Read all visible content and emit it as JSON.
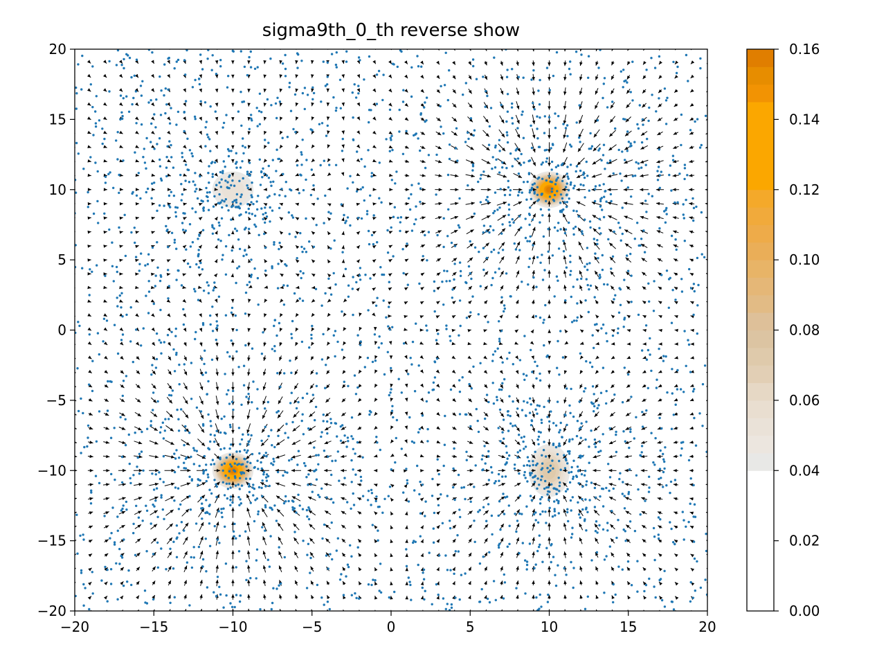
{
  "chart_data": {
    "type": "quiver_contour_scatter",
    "title": "sigma9th_0_th reverse show",
    "xlabel": "",
    "ylabel": "",
    "xlim": [
      -20,
      20
    ],
    "ylim": [
      -20,
      20
    ],
    "grid": false,
    "x_ticks": [
      -20,
      -15,
      -10,
      -5,
      0,
      5,
      10,
      15,
      20
    ],
    "y_ticks": [
      -20,
      -15,
      -10,
      -5,
      0,
      5,
      10,
      15,
      20
    ],
    "x_tick_labels": [
      "−20",
      "−15",
      "−10",
      "−5",
      "0",
      "5",
      "10",
      "15",
      "20"
    ],
    "y_tick_labels": [
      "−20",
      "−15",
      "−10",
      "−5",
      "0",
      "5",
      "10",
      "15",
      "20"
    ],
    "density_peaks": [
      {
        "x": -10,
        "y": 10,
        "peak": 0.055
      },
      {
        "x": 10,
        "y": 10,
        "peak": 0.16
      },
      {
        "x": -10,
        "y": -10,
        "peak": 0.16
      },
      {
        "x": 10,
        "y": -10,
        "peak": 0.075
      }
    ],
    "quiver": {
      "grid_range": [
        -20,
        20
      ],
      "grid_count": 40,
      "sinks": [
        {
          "x": 10,
          "y": 10
        },
        {
          "x": -10,
          "y": -10
        },
        {
          "x": 10,
          "y": -10
        },
        {
          "x": -10,
          "y": 10
        }
      ]
    },
    "scatter": {
      "point_color": "#1f77b4",
      "point_count": 3000
    },
    "colorbar": {
      "min": 0.0,
      "max": 0.16,
      "ticks": [
        0.0,
        0.02,
        0.04,
        0.06,
        0.08,
        0.1,
        0.12,
        0.14,
        0.16
      ],
      "tick_labels": [
        "0.00",
        "0.02",
        "0.04",
        "0.06",
        "0.08",
        "0.10",
        "0.12",
        "0.14",
        "0.16"
      ],
      "levels": [
        {
          "from": 0.0,
          "to": 0.04,
          "color": "#ffffff"
        },
        {
          "from": 0.04,
          "to": 0.045,
          "color": "#e8e8e6"
        },
        {
          "from": 0.045,
          "to": 0.05,
          "color": "#ece6df"
        },
        {
          "from": 0.05,
          "to": 0.055,
          "color": "#eae2d8"
        },
        {
          "from": 0.055,
          "to": 0.06,
          "color": "#e9ded0"
        },
        {
          "from": 0.06,
          "to": 0.065,
          "color": "#e6d8c5"
        },
        {
          "from": 0.065,
          "to": 0.07,
          "color": "#e2cfb5"
        },
        {
          "from": 0.07,
          "to": 0.075,
          "color": "#dfcaab"
        },
        {
          "from": 0.075,
          "to": 0.08,
          "color": "#dcc4a2"
        },
        {
          "from": 0.08,
          "to": 0.085,
          "color": "#dec099"
        },
        {
          "from": 0.085,
          "to": 0.09,
          "color": "#e2bb85"
        },
        {
          "from": 0.09,
          "to": 0.095,
          "color": "#e5b777"
        },
        {
          "from": 0.095,
          "to": 0.1,
          "color": "#e8b467"
        },
        {
          "from": 0.1,
          "to": 0.105,
          "color": "#eaae58"
        },
        {
          "from": 0.105,
          "to": 0.11,
          "color": "#eeab49"
        },
        {
          "from": 0.11,
          "to": 0.115,
          "color": "#f1aa3b"
        },
        {
          "from": 0.115,
          "to": 0.12,
          "color": "#f4a92a"
        },
        {
          "from": 0.12,
          "to": 0.145,
          "color": "#fba700"
        },
        {
          "from": 0.145,
          "to": 0.15,
          "color": "#f29303"
        },
        {
          "from": 0.15,
          "to": 0.155,
          "color": "#e78d00"
        },
        {
          "from": 0.155,
          "to": 0.16,
          "color": "#e07e00"
        }
      ]
    }
  }
}
